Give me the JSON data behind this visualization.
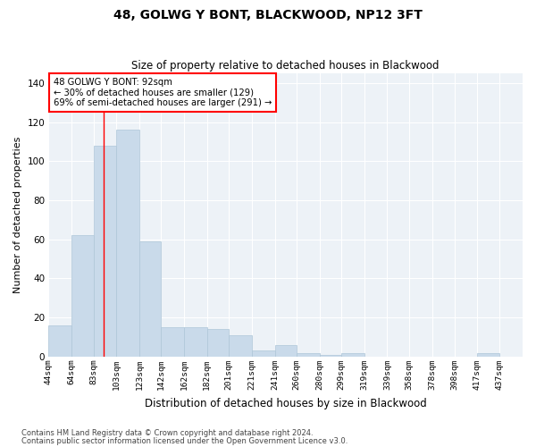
{
  "title": "48, GOLWG Y BONT, BLACKWOOD, NP12 3FT",
  "subtitle": "Size of property relative to detached houses in Blackwood",
  "xlabel": "Distribution of detached houses by size in Blackwood",
  "ylabel": "Number of detached properties",
  "bar_color": "#c9daea",
  "bar_edge_color": "#aec6d8",
  "background_color": "#edf2f7",
  "grid_color": "#ffffff",
  "annotation_text": "48 GOLWG Y BONT: 92sqm\n← 30% of detached houses are smaller (129)\n69% of semi-detached houses are larger (291) →",
  "vline_x": 92,
  "categories": [
    "44sqm",
    "64sqm",
    "83sqm",
    "103sqm",
    "123sqm",
    "142sqm",
    "162sqm",
    "182sqm",
    "201sqm",
    "221sqm",
    "241sqm",
    "260sqm",
    "280sqm",
    "299sqm",
    "319sqm",
    "339sqm",
    "358sqm",
    "378sqm",
    "398sqm",
    "417sqm",
    "437sqm"
  ],
  "bin_edges": [
    44,
    64,
    83,
    103,
    123,
    142,
    162,
    182,
    201,
    221,
    241,
    260,
    280,
    299,
    319,
    339,
    358,
    378,
    398,
    417,
    437
  ],
  "values": [
    16,
    62,
    108,
    116,
    59,
    15,
    15,
    14,
    11,
    3,
    6,
    2,
    1,
    2,
    0,
    0,
    0,
    0,
    0,
    2,
    0
  ],
  "ylim": [
    0,
    145
  ],
  "yticks": [
    0,
    20,
    40,
    60,
    80,
    100,
    120,
    140
  ],
  "footnote1": "Contains HM Land Registry data © Crown copyright and database right 2024.",
  "footnote2": "Contains public sector information licensed under the Open Government Licence v3.0."
}
